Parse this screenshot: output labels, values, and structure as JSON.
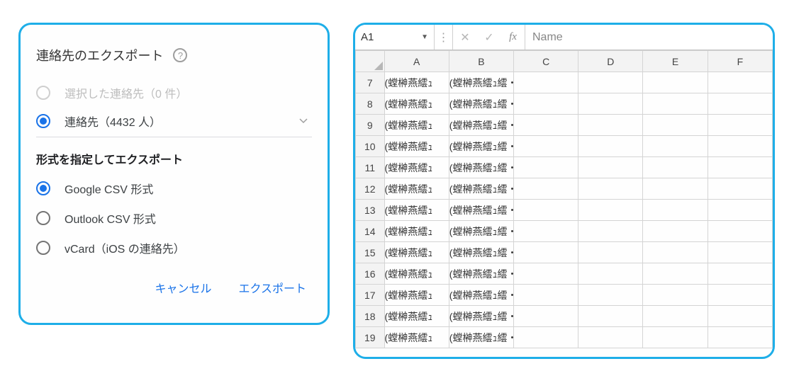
{
  "dialog": {
    "title": "連絡先のエクスポート",
    "source_options": {
      "selected_label": "選択した連絡先（0 件）",
      "all_label": "連絡先（4432 人）"
    },
    "format_heading": "形式を指定してエクスポート",
    "format_options": {
      "google_csv": "Google CSV 形式",
      "outlook_csv": "Outlook CSV 形式",
      "vcard": "vCard（iOS の連絡先）"
    },
    "actions": {
      "cancel": "キャンセル",
      "export": "エクスポート"
    }
  },
  "sheet": {
    "name_box": "A1",
    "formula_value": "Name",
    "col_headers": [
      "A",
      "B",
      "C",
      "D",
      "E",
      "F"
    ],
    "row_start": 7,
    "row_count": 13,
    "cell_A": "(螳榊燕繧ｭ",
    "cell_B_core": "(螳榊燕繧ｭ繧・",
    "colors": {
      "panel_border": "#1eaee8",
      "accent": "#1a73e8",
      "active_col_bg": "#dfeee0",
      "active_col_border": "#2b7d3a"
    }
  }
}
